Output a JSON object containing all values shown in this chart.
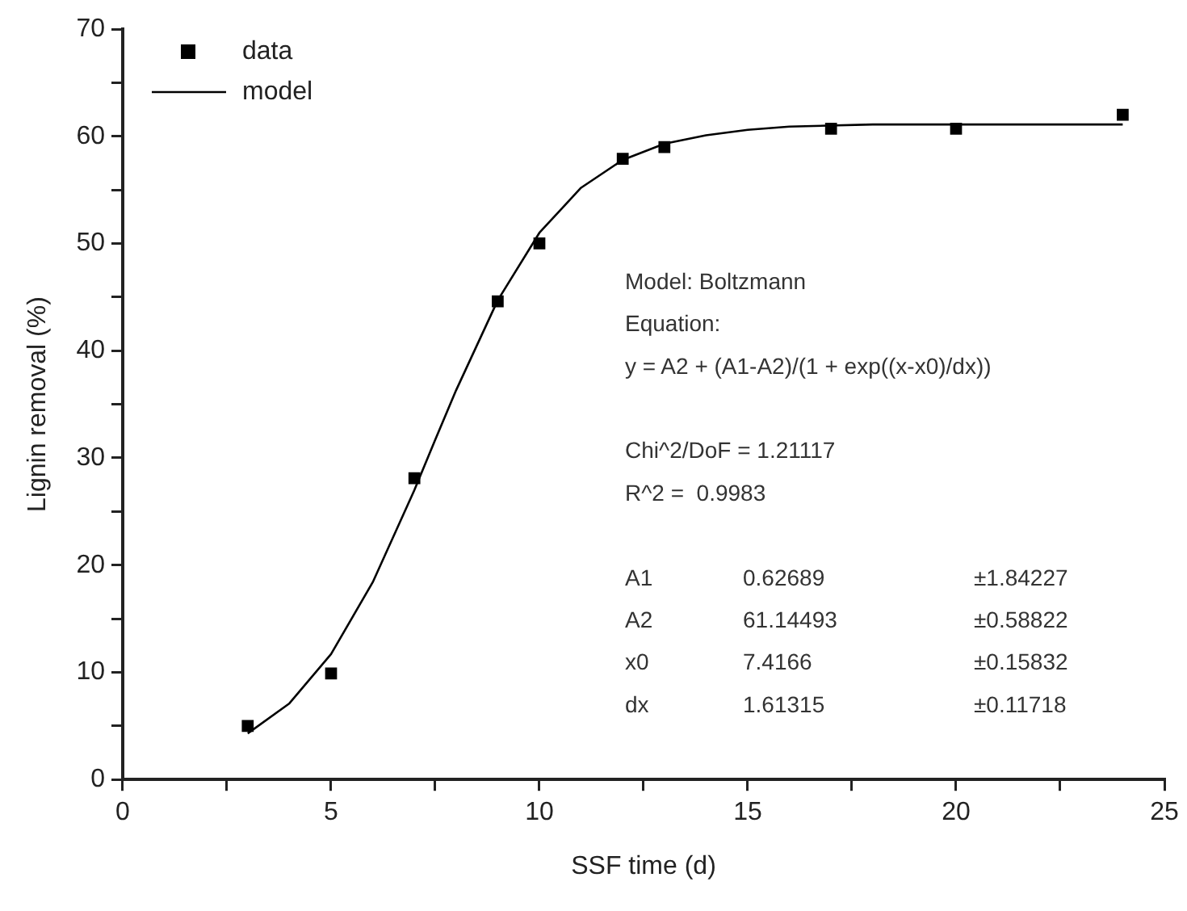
{
  "chart_data": {
    "type": "scatter",
    "xlabel": "SSF time (d)",
    "ylabel": "Lignin removal (%)",
    "xlim": [
      0,
      25
    ],
    "xticks": [
      0,
      {
        "value": 2.5,
        "label": null
      },
      5,
      {
        "value": 7.5,
        "label": null
      },
      10,
      {
        "value": 12.5,
        "label": null
      },
      15,
      {
        "value": 17.5,
        "label": null
      },
      20,
      {
        "value": 22.5,
        "label": null
      },
      25
    ],
    "ylim": [
      0,
      70
    ],
    "yticks": [
      0,
      {
        "value": 5,
        "label": null
      },
      10,
      {
        "value": 15,
        "label": null
      },
      20,
      {
        "value": 25,
        "label": null
      },
      30,
      {
        "value": 35,
        "label": null
      },
      40,
      {
        "value": 45,
        "label": null
      },
      50,
      {
        "value": 55,
        "label": null
      },
      60,
      {
        "value": 65,
        "label": null
      },
      70
    ],
    "grid": false,
    "legend": "top left",
    "series": [
      {
        "name": "data",
        "marker": "square",
        "color": "#000000",
        "x": [
          3,
          5,
          7,
          9,
          10,
          12,
          13,
          17,
          20,
          24
        ],
        "values": [
          5.0,
          9.9,
          28.1,
          44.6,
          50.0,
          57.9,
          59.0,
          60.7,
          60.7,
          62.0
        ]
      },
      {
        "name": "model",
        "type": "line",
        "marker": "none",
        "line_style": "solid",
        "color": "#000000",
        "x": [
          3,
          4,
          5,
          6,
          7,
          7.5,
          8,
          9,
          10,
          11,
          12,
          13,
          14,
          15,
          16,
          18,
          20,
          24
        ],
        "values": [
          4.3,
          7.1,
          11.7,
          18.4,
          27.0,
          31.7,
          36.3,
          44.7,
          51.0,
          55.2,
          57.8,
          59.3,
          60.1,
          60.6,
          60.9,
          61.1,
          61.1,
          61.1
        ]
      }
    ],
    "annotations": [
      "Model: Boltzmann\nEquation:\ny = A2 + (A1-A2)/(1 + exp((x-x0)/dx))\n\nChi^2/DoF = 1.21117\nR^2 =  0.9983\n\nA1\t0.62689\t±1.84227\nA2\t61.14493\t±0.58822\nx0\t7.4166\t±0.15832\ndx\t1.61315\t±0.11718"
    ]
  }
}
